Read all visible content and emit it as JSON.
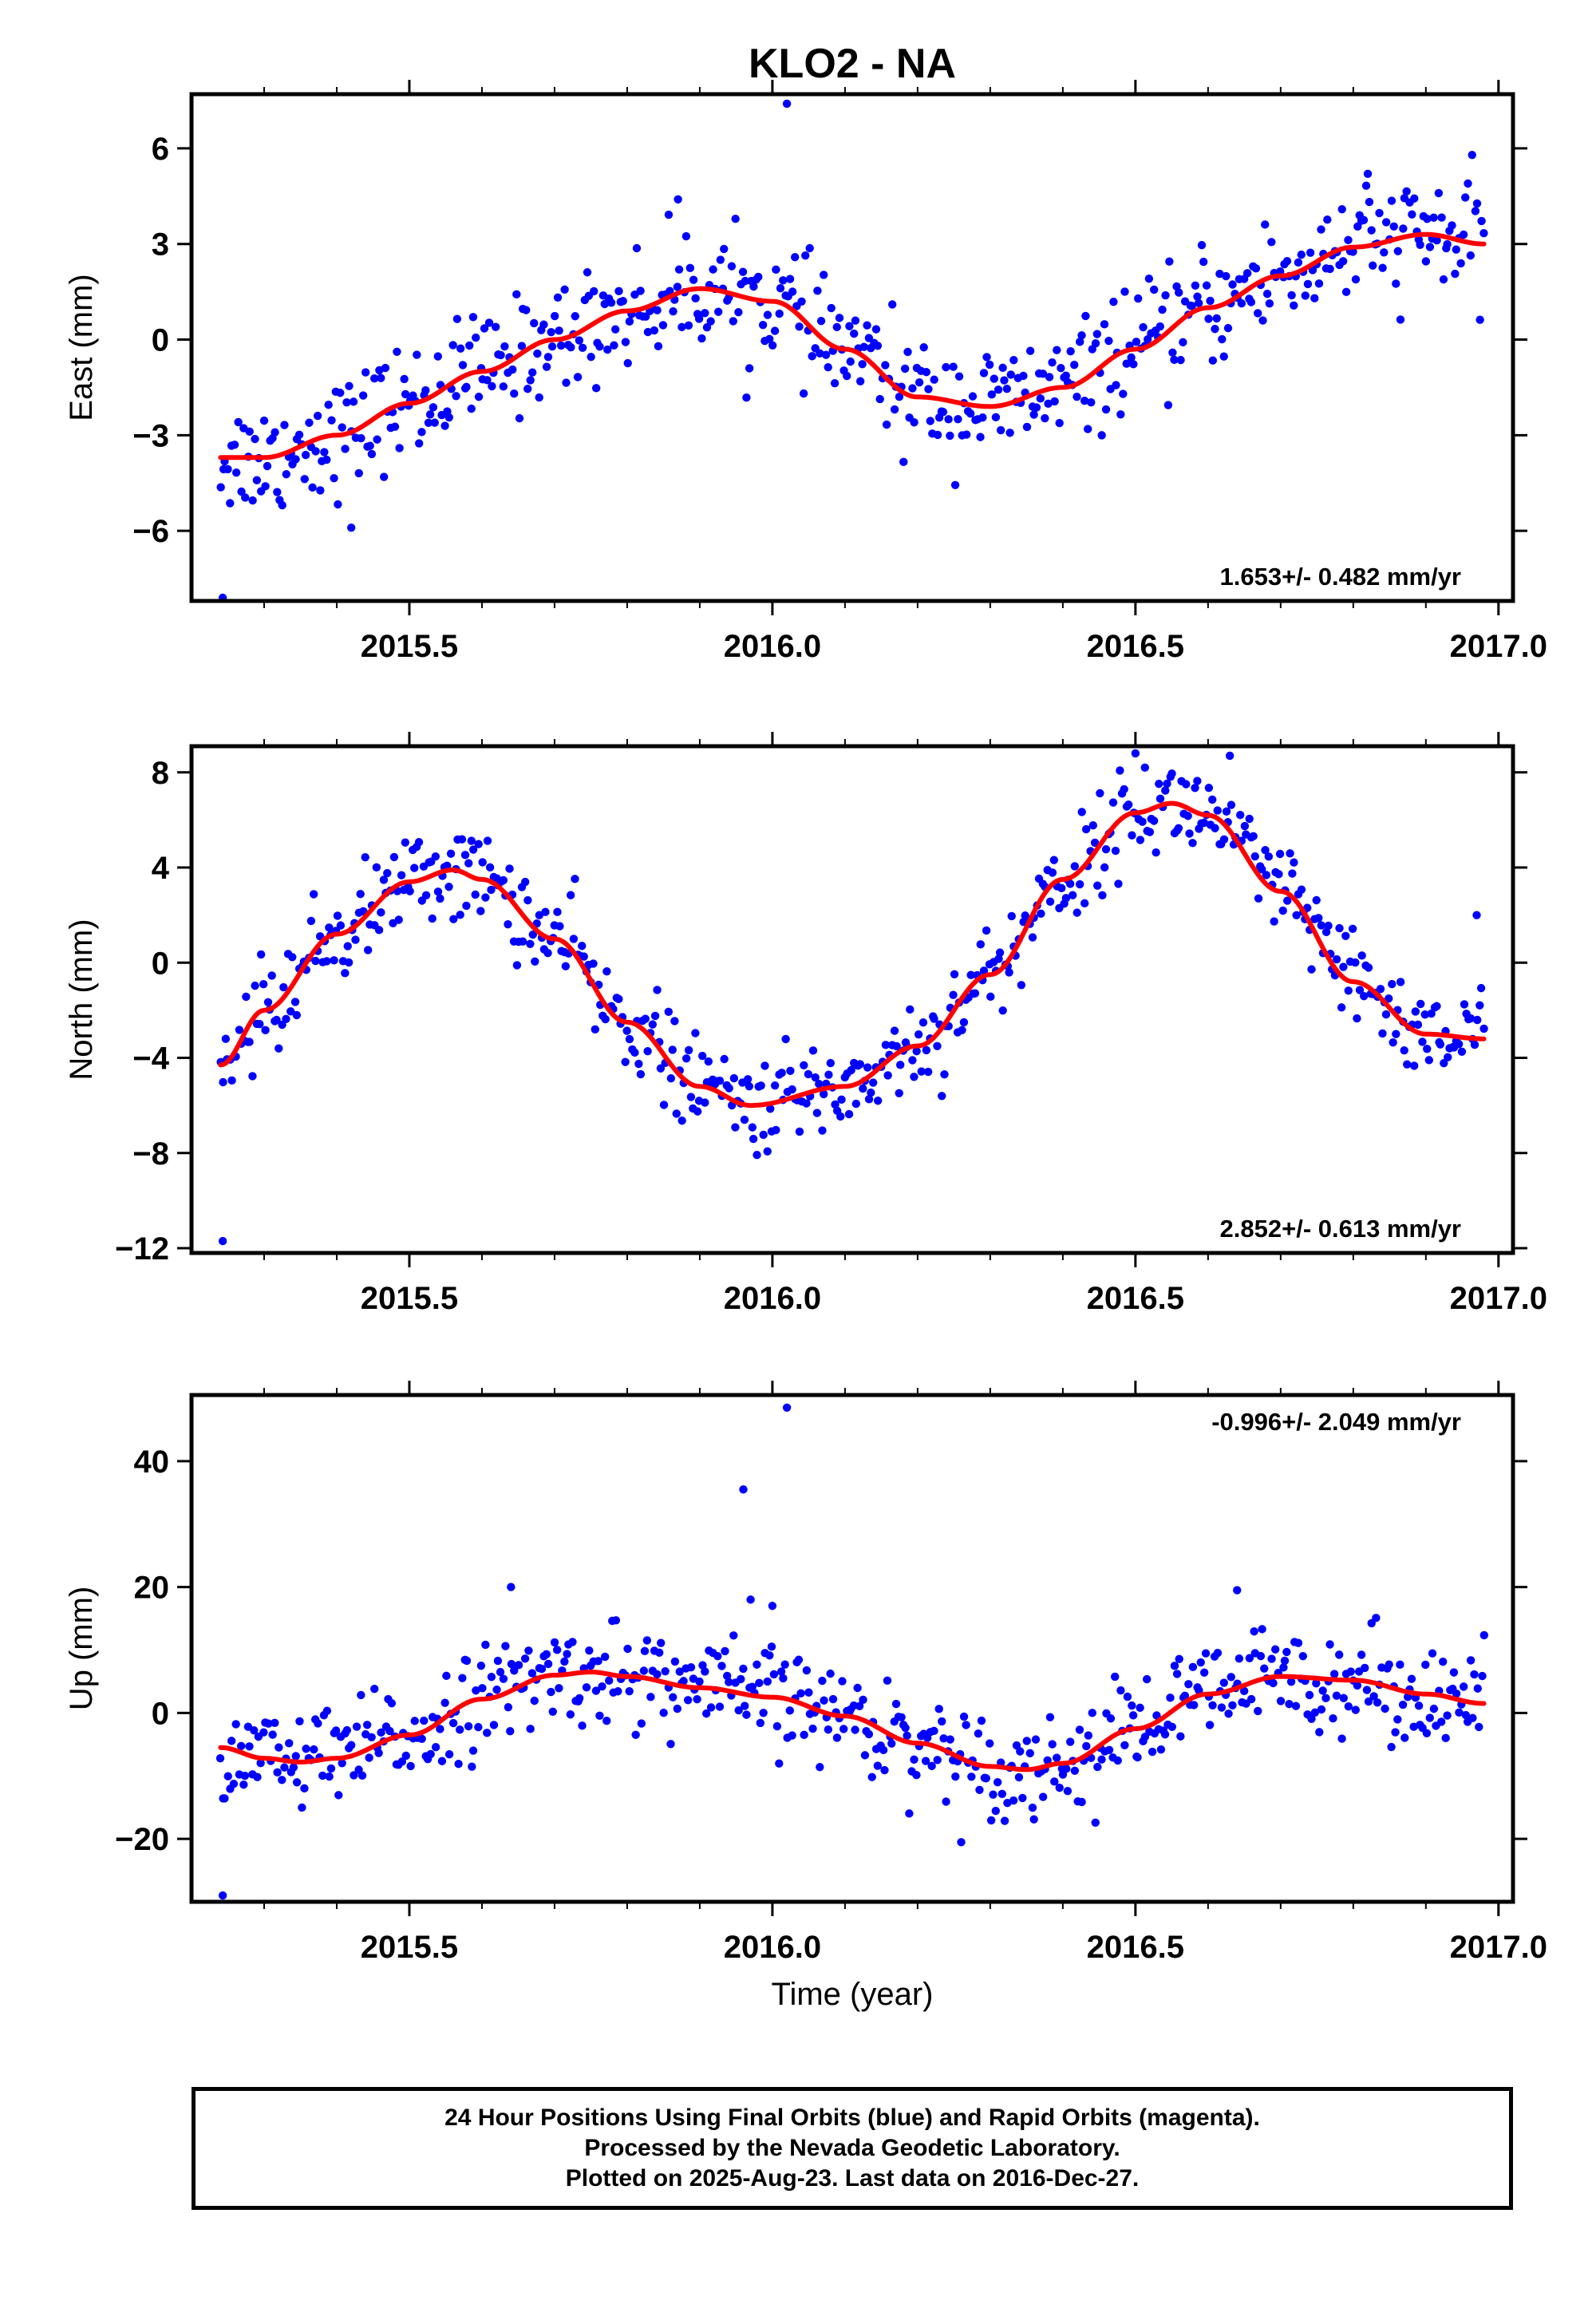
{
  "title": "KLO2 - NA",
  "xlabel": "Time (year)",
  "caption": {
    "line1": "24 Hour Positions Using Final Orbits (blue) and Rapid Orbits (magenta).",
    "line2": "Processed by the Nevada Geodetic Laboratory.",
    "line3": "Plotted on 2025-Aug-23. Last data on 2016-Dec-27."
  },
  "colors": {
    "points": "#0000ff",
    "fit": "#ff0000",
    "frame": "#000000"
  },
  "chart_data": [
    {
      "type": "scatter",
      "ylabel": "East (mm)",
      "rate": "1.653+/- 0.482 mm/yr",
      "xlim": [
        2015.2,
        2017.02
      ],
      "ylim": [
        -8.2,
        7.7
      ],
      "x_ticks": [
        2015.5,
        2016.0,
        2016.5,
        2017.0
      ],
      "x_tick_labels": [
        "2015.5",
        "2016.0",
        "2016.5",
        "2017.0"
      ],
      "y_ticks": [
        -6,
        -3,
        0,
        3,
        6
      ],
      "y_tick_labels": [
        "−6",
        "−3",
        "0",
        "3",
        "6"
      ],
      "fit": {
        "x": [
          2015.24,
          2015.3,
          2015.4,
          2015.5,
          2015.6,
          2015.7,
          2015.8,
          2015.9,
          2016.0,
          2016.1,
          2016.2,
          2016.3,
          2016.4,
          2016.5,
          2016.6,
          2016.7,
          2016.8,
          2016.9,
          2016.98
        ],
        "y": [
          -3.7,
          -3.7,
          -3.0,
          -2.0,
          -1.0,
          0.0,
          0.9,
          1.6,
          1.2,
          -0.3,
          -1.8,
          -2.1,
          -1.5,
          -0.3,
          1.0,
          2.0,
          2.9,
          3.3,
          3.0
        ]
      },
      "points": {
        "anchors_x": [
          2015.24,
          2015.3,
          2015.4,
          2015.5,
          2015.6,
          2015.7,
          2015.8,
          2015.9,
          2016.0,
          2016.1,
          2016.2,
          2016.3,
          2016.4,
          2016.5,
          2016.6,
          2016.7,
          2016.8,
          2016.9,
          2016.98
        ],
        "anchors_y": [
          -3.7,
          -3.7,
          -3.0,
          -2.0,
          -1.0,
          0.0,
          0.9,
          1.6,
          1.2,
          -0.3,
          -1.8,
          -2.1,
          -1.5,
          -0.3,
          1.0,
          2.0,
          2.9,
          3.3,
          3.0
        ],
        "count": 560,
        "spread": 0.9,
        "outliers": [
          [
            2015.243,
            -8.1
          ],
          [
            2016.02,
            7.4
          ],
          [
            2015.42,
            -5.9
          ],
          [
            2015.87,
            4.4
          ],
          [
            2016.82,
            5.2
          ]
        ]
      }
    },
    {
      "type": "scatter",
      "ylabel": "North (mm)",
      "rate": "2.852+/- 0.613 mm/yr",
      "xlim": [
        2015.2,
        2017.02
      ],
      "ylim": [
        -12.2,
        9.1
      ],
      "x_ticks": [
        2015.5,
        2016.0,
        2016.5,
        2017.0
      ],
      "x_tick_labels": [
        "2015.5",
        "2016.0",
        "2016.5",
        "2017.0"
      ],
      "y_ticks": [
        -12,
        -8,
        -4,
        0,
        4,
        8
      ],
      "y_tick_labels": [
        "−12",
        "−8",
        "−4",
        "0",
        "4",
        "8"
      ],
      "fit": {
        "x": [
          2015.24,
          2015.3,
          2015.4,
          2015.5,
          2015.56,
          2015.6,
          2015.7,
          2015.8,
          2015.9,
          2015.97,
          2016.1,
          2016.2,
          2016.3,
          2016.4,
          2016.5,
          2016.55,
          2016.6,
          2016.7,
          2016.8,
          2016.9,
          2016.98
        ],
        "y": [
          -4.3,
          -2.0,
          1.2,
          3.4,
          3.9,
          3.5,
          1.0,
          -2.5,
          -5.2,
          -6.0,
          -5.2,
          -3.5,
          -0.5,
          3.5,
          6.3,
          6.7,
          6.2,
          3.0,
          -0.8,
          -3.0,
          -3.2
        ]
      },
      "points": {
        "anchors_x": [
          2015.24,
          2015.3,
          2015.4,
          2015.5,
          2015.56,
          2015.6,
          2015.7,
          2015.8,
          2015.9,
          2015.97,
          2016.1,
          2016.2,
          2016.3,
          2016.4,
          2016.5,
          2016.55,
          2016.6,
          2016.7,
          2016.8,
          2016.9,
          2016.98
        ],
        "anchors_y": [
          -4.3,
          -2.0,
          1.2,
          3.4,
          3.9,
          3.5,
          1.0,
          -2.5,
          -5.2,
          -6.0,
          -5.2,
          -3.5,
          -0.5,
          3.5,
          6.3,
          6.7,
          6.2,
          3.0,
          -0.8,
          -3.0,
          -3.2
        ],
        "count": 560,
        "spread": 1.0,
        "outliers": [
          [
            2015.243,
            -11.7
          ],
          [
            2016.5,
            8.8
          ],
          [
            2016.63,
            8.7
          ],
          [
            2016.97,
            2.0
          ]
        ]
      }
    },
    {
      "type": "scatter",
      "ylabel": "Up (mm)",
      "rate": "-0.996+/- 2.049 mm/yr",
      "xlim": [
        2015.2,
        2017.02
      ],
      "ylim": [
        -30,
        50.5
      ],
      "x_ticks": [
        2015.5,
        2016.0,
        2016.5,
        2017.0
      ],
      "x_tick_labels": [
        "2015.5",
        "2016.0",
        "2016.5",
        "2017.0"
      ],
      "y_ticks": [
        -20,
        0,
        20,
        40
      ],
      "y_tick_labels": [
        "−20",
        "0",
        "20",
        "40"
      ],
      "fit": {
        "x": [
          2015.24,
          2015.3,
          2015.35,
          2015.4,
          2015.5,
          2015.6,
          2015.7,
          2015.75,
          2015.8,
          2015.9,
          2016.0,
          2016.1,
          2016.2,
          2016.3,
          2016.35,
          2016.4,
          2016.5,
          2016.6,
          2016.7,
          2016.8,
          2016.9,
          2016.98
        ],
        "y": [
          -5.5,
          -7.2,
          -7.8,
          -7.2,
          -3.5,
          2.2,
          6.0,
          6.5,
          5.8,
          4.0,
          2.5,
          -0.5,
          -4.8,
          -8.5,
          -9.0,
          -8.0,
          -2.5,
          3.0,
          5.8,
          5.2,
          3.0,
          1.5
        ]
      },
      "points": {
        "anchors_x": [
          2015.24,
          2015.3,
          2015.35,
          2015.4,
          2015.5,
          2015.6,
          2015.7,
          2015.75,
          2015.8,
          2015.9,
          2016.0,
          2016.1,
          2016.2,
          2016.3,
          2016.35,
          2016.4,
          2016.5,
          2016.6,
          2016.7,
          2016.8,
          2016.9,
          2016.98
        ],
        "anchors_y": [
          -5.5,
          -7.2,
          -7.8,
          -7.2,
          -3.5,
          2.2,
          6.0,
          6.5,
          5.8,
          4.0,
          2.5,
          -0.5,
          -4.8,
          -8.5,
          -9.0,
          -8.0,
          -2.5,
          3.0,
          5.8,
          5.2,
          3.0,
          1.5
        ],
        "count": 560,
        "spread": 4.0,
        "outliers": [
          [
            2015.243,
            -29.0
          ],
          [
            2016.02,
            48.5
          ],
          [
            2015.96,
            35.5
          ],
          [
            2015.64,
            20.0
          ],
          [
            2016.64,
            19.5
          ],
          [
            2015.97,
            18.0
          ],
          [
            2016.0,
            17.0
          ]
        ]
      }
    }
  ]
}
